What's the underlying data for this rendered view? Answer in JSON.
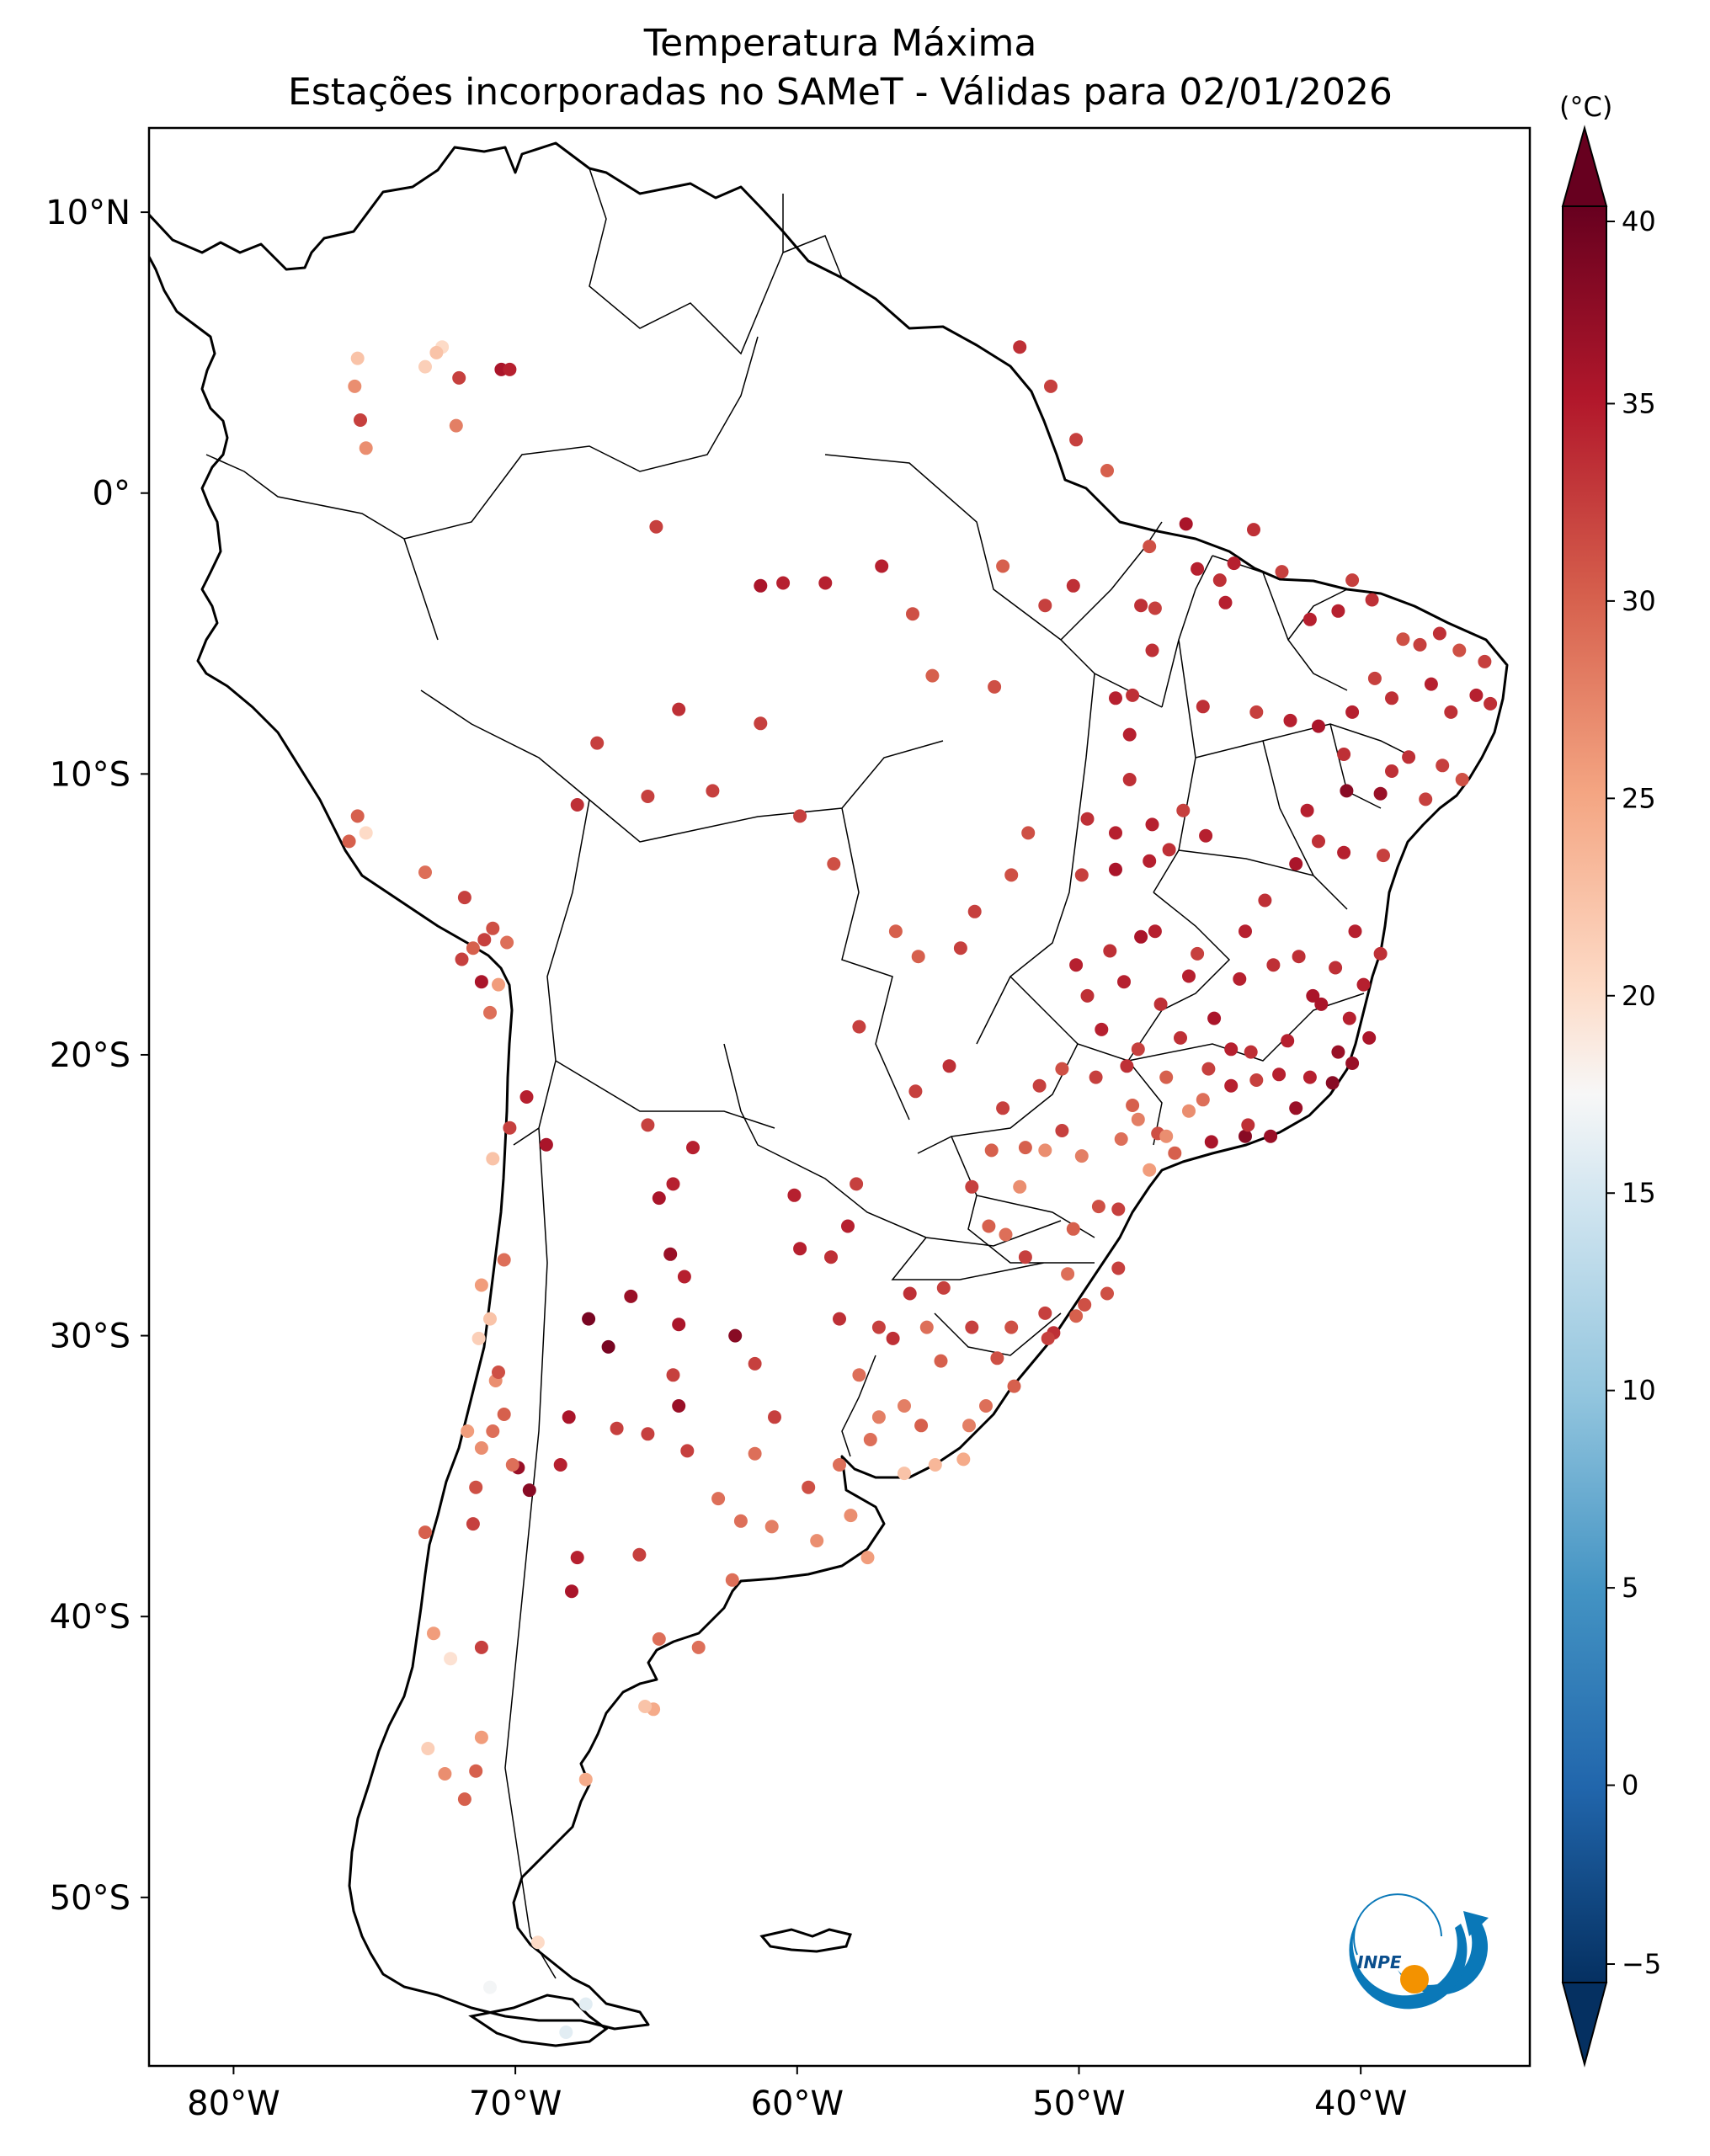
{
  "chart_data": {
    "type": "scatter",
    "title": "Temperatura Máxima",
    "subtitle": "Estações incorporadas no SAMeT - Válidas para 02/01/2026",
    "projection": "PlateCarree",
    "extent": {
      "lon": [
        -83,
        -34
      ],
      "lat": [
        -56,
        13
      ]
    },
    "x_ticks": [
      {
        "lon": -80,
        "label": "80°W"
      },
      {
        "lon": -70,
        "label": "70°W"
      },
      {
        "lon": -60,
        "label": "60°W"
      },
      {
        "lon": -50,
        "label": "50°W"
      },
      {
        "lon": -40,
        "label": "40°W"
      }
    ],
    "y_ticks": [
      {
        "lat": 10,
        "label": "10°N"
      },
      {
        "lat": 0,
        "label": "0°"
      },
      {
        "lat": -10,
        "label": "10°S"
      },
      {
        "lat": -20,
        "label": "20°S"
      },
      {
        "lat": -30,
        "label": "30°S"
      },
      {
        "lat": -40,
        "label": "40°S"
      },
      {
        "lat": -50,
        "label": "50°S"
      }
    ],
    "colorbar": {
      "label": "(°C)",
      "min": -5,
      "max": 40,
      "ticks": [
        -5,
        0,
        5,
        10,
        15,
        20,
        25,
        30,
        35,
        40
      ],
      "extend": "both",
      "colormap": "RdBu_r",
      "colors": [
        "#053061",
        "#2166ac",
        "#4393c3",
        "#92c5de",
        "#d1e5f0",
        "#f7f7f7",
        "#fddbc7",
        "#f4a582",
        "#d6604d",
        "#b2182b",
        "#67001f"
      ]
    },
    "stations": [
      [
        -75.6,
        4.8,
        24
      ],
      [
        -75.7,
        3.8,
        28
      ],
      [
        -75.5,
        2.6,
        33
      ],
      [
        -75.3,
        1.6,
        28
      ],
      [
        -72.6,
        5.2,
        22
      ],
      [
        -72.8,
        5,
        24
      ],
      [
        -73.2,
        4.5,
        23
      ],
      [
        -72,
        4.1,
        33
      ],
      [
        -70.5,
        4.4,
        36
      ],
      [
        -70.2,
        4.4,
        35
      ],
      [
        -72.1,
        2.4,
        29
      ],
      [
        -65,
        -1.2,
        33
      ],
      [
        -61.3,
        -3.3,
        36
      ],
      [
        -60.5,
        -3.2,
        35
      ],
      [
        -59,
        -3.2,
        35
      ],
      [
        -57,
        -2.6,
        35
      ],
      [
        -52.7,
        -2.6,
        31
      ],
      [
        -50.2,
        -3.3,
        34
      ],
      [
        -51.2,
        -4,
        33
      ],
      [
        -55.9,
        -4.3,
        32
      ],
      [
        -55.2,
        -6.5,
        31
      ],
      [
        -47.8,
        -4,
        34
      ],
      [
        -47.3,
        -4.1,
        33
      ],
      [
        -44.8,
        -3.9,
        35
      ],
      [
        -47.5,
        -1.9,
        32
      ],
      [
        -46.2,
        -1.1,
        36
      ],
      [
        -45.8,
        -2.7,
        35
      ],
      [
        -45,
        -3.1,
        34
      ],
      [
        -44.5,
        -2.5,
        35
      ],
      [
        -43.8,
        -1.3,
        34
      ],
      [
        -42.8,
        -2.8,
        33
      ],
      [
        -41.8,
        -4.5,
        35
      ],
      [
        -40.8,
        -4.2,
        35
      ],
      [
        -40.3,
        -3.1,
        33
      ],
      [
        -39.6,
        -3.8,
        34
      ],
      [
        -49,
        0.8,
        31
      ],
      [
        -50.1,
        1.9,
        33
      ],
      [
        -51,
        3.8,
        33
      ],
      [
        -52.1,
        5.2,
        34
      ],
      [
        -53,
        -6.9,
        32
      ],
      [
        -48.7,
        -7.3,
        35
      ],
      [
        -48.1,
        -7.2,
        34
      ],
      [
        -48.2,
        -8.6,
        35
      ],
      [
        -47.4,
        -5.6,
        34
      ],
      [
        -45.6,
        -7.6,
        34
      ],
      [
        -43.7,
        -7.8,
        33
      ],
      [
        -42.5,
        -8.1,
        35
      ],
      [
        -41.5,
        -8.3,
        36
      ],
      [
        -40.6,
        -9.3,
        34
      ],
      [
        -39.5,
        -6.6,
        33
      ],
      [
        -38.5,
        -5.2,
        32
      ],
      [
        -37.9,
        -5.4,
        33
      ],
      [
        -37.2,
        -5,
        34
      ],
      [
        -36.5,
        -5.6,
        32
      ],
      [
        -35.6,
        -6,
        33
      ],
      [
        -35.4,
        -7.5,
        34
      ],
      [
        -35.9,
        -7.2,
        35
      ],
      [
        -36.8,
        -7.8,
        34
      ],
      [
        -37.5,
        -6.8,
        35
      ],
      [
        -38.9,
        -7.3,
        34
      ],
      [
        -40.3,
        -7.8,
        35
      ],
      [
        -38.3,
        -9.4,
        34
      ],
      [
        -37.1,
        -9.7,
        33
      ],
      [
        -36.4,
        -10.2,
        32
      ],
      [
        -37.7,
        -10.9,
        33
      ],
      [
        -38.9,
        -9.9,
        34
      ],
      [
        -40.5,
        -10.6,
        38
      ],
      [
        -39.3,
        -10.7,
        37
      ],
      [
        -41.9,
        -11.3,
        35
      ],
      [
        -41.5,
        -12.4,
        34
      ],
      [
        -42.3,
        -13.2,
        36
      ],
      [
        -40.6,
        -12.8,
        35
      ],
      [
        -39.2,
        -12.9,
        33
      ],
      [
        -43.4,
        -14.5,
        34
      ],
      [
        -44.1,
        -15.6,
        35
      ],
      [
        -48.2,
        -10.2,
        34
      ],
      [
        -47.4,
        -11.8,
        35
      ],
      [
        -48.7,
        -12.1,
        35
      ],
      [
        -49.7,
        -11.6,
        34
      ],
      [
        -48.7,
        -13.4,
        36
      ],
      [
        -47.5,
        -13.1,
        35
      ],
      [
        -46.8,
        -12.7,
        34
      ],
      [
        -46.3,
        -11.3,
        33
      ],
      [
        -45.5,
        -12.2,
        35
      ],
      [
        -47.8,
        -15.8,
        36
      ],
      [
        -47.3,
        -15.6,
        35
      ],
      [
        -48.9,
        -16.3,
        34
      ],
      [
        -50.1,
        -16.8,
        35
      ],
      [
        -49.7,
        -17.9,
        34
      ],
      [
        -48.4,
        -17.4,
        35
      ],
      [
        -47.1,
        -18.2,
        34
      ],
      [
        -46.1,
        -17.2,
        35
      ],
      [
        -45.2,
        -18.7,
        36
      ],
      [
        -44.6,
        -19.8,
        35
      ],
      [
        -43.9,
        -19.9,
        34
      ],
      [
        -42.6,
        -19.5,
        35
      ],
      [
        -41.4,
        -18.2,
        36
      ],
      [
        -40.4,
        -18.7,
        35
      ],
      [
        -40.3,
        -20.3,
        37
      ],
      [
        -41,
        -21,
        38
      ],
      [
        -42.3,
        -21.9,
        37
      ],
      [
        -43.2,
        -22.9,
        37
      ],
      [
        -44.1,
        -22.9,
        38
      ],
      [
        -45.3,
        -23.1,
        36
      ],
      [
        -46.6,
        -23.5,
        31
      ],
      [
        -47.2,
        -22.8,
        32
      ],
      [
        -48.1,
        -21.8,
        31
      ],
      [
        -49.4,
        -20.8,
        33
      ],
      [
        -50.6,
        -20.5,
        32
      ],
      [
        -51.4,
        -21.1,
        33
      ],
      [
        -52.7,
        -21.9,
        33
      ],
      [
        -54.6,
        -20.4,
        34
      ],
      [
        -55.8,
        -21.3,
        33
      ],
      [
        -57.8,
        -19,
        33
      ],
      [
        -56.5,
        -15.6,
        31
      ],
      [
        -55.7,
        -16.5,
        31
      ],
      [
        -54.2,
        -16.2,
        33
      ],
      [
        -53.7,
        -14.9,
        33
      ],
      [
        -52.4,
        -13.6,
        32
      ],
      [
        -51.8,
        -12.1,
        32
      ],
      [
        -49.9,
        -13.6,
        33
      ],
      [
        -58.7,
        -13.2,
        32
      ],
      [
        -59.9,
        -11.5,
        33
      ],
      [
        -63,
        -10.6,
        33
      ],
      [
        -65.3,
        -10.8,
        33
      ],
      [
        -67.8,
        -11.1,
        34
      ],
      [
        -67.1,
        -8.9,
        33
      ],
      [
        -64.2,
        -7.7,
        34
      ],
      [
        -61.3,
        -8.2,
        33
      ],
      [
        -75.6,
        -11.5,
        31
      ],
      [
        -75.9,
        -12.4,
        31
      ],
      [
        -75.3,
        -12.1,
        22
      ],
      [
        -73.2,
        -13.5,
        30
      ],
      [
        -71.8,
        -14.4,
        33
      ],
      [
        -71.5,
        -16.2,
        31
      ],
      [
        -71.1,
        -15.9,
        33
      ],
      [
        -70.8,
        -15.5,
        32
      ],
      [
        -70.3,
        -16,
        30
      ],
      [
        -71.9,
        -16.6,
        33
      ],
      [
        -71.2,
        -17.4,
        36
      ],
      [
        -70.6,
        -17.5,
        27
      ],
      [
        -70.9,
        -18.5,
        30
      ],
      [
        -69.6,
        -21.5,
        35
      ],
      [
        -70.2,
        -22.6,
        33
      ],
      [
        -68.9,
        -23.2,
        36
      ],
      [
        -65.3,
        -22.5,
        33
      ],
      [
        -63.7,
        -23.3,
        35
      ],
      [
        -64.4,
        -24.6,
        35
      ],
      [
        -64.9,
        -25.1,
        36
      ],
      [
        -64.5,
        -27.1,
        37
      ],
      [
        -64,
        -27.9,
        35
      ],
      [
        -65.9,
        -28.6,
        37
      ],
      [
        -67.4,
        -29.4,
        39
      ],
      [
        -66.7,
        -30.4,
        39
      ],
      [
        -64.2,
        -29.6,
        36
      ],
      [
        -62.2,
        -30,
        38
      ],
      [
        -61.5,
        -31,
        33
      ],
      [
        -60.1,
        -25,
        35
      ],
      [
        -59.9,
        -26.9,
        35
      ],
      [
        -58.2,
        -26.1,
        35
      ],
      [
        -58.8,
        -27.2,
        34
      ],
      [
        -57.9,
        -24.6,
        33
      ],
      [
        -58.5,
        -29.4,
        34
      ],
      [
        -57.1,
        -29.7,
        33
      ],
      [
        -56,
        -28.5,
        34
      ],
      [
        -56.6,
        -30.1,
        34
      ],
      [
        -57.8,
        -31.4,
        30
      ],
      [
        -57.1,
        -32.9,
        29
      ],
      [
        -55.6,
        -33.2,
        31
      ],
      [
        -55.1,
        -34.6,
        25
      ],
      [
        -56.2,
        -34.9,
        24
      ],
      [
        -54.1,
        -34.4,
        26
      ],
      [
        -53.9,
        -33.2,
        29
      ],
      [
        -56.2,
        -32.5,
        29
      ],
      [
        -57.4,
        -33.7,
        30
      ],
      [
        -53.2,
        -26.1,
        31
      ],
      [
        -52.6,
        -26.4,
        30
      ],
      [
        -51.9,
        -27.2,
        33
      ],
      [
        -50.4,
        -27.8,
        30
      ],
      [
        -48.6,
        -27.6,
        33
      ],
      [
        -49,
        -28.5,
        32
      ],
      [
        -51.2,
        -29.2,
        33
      ],
      [
        -50.9,
        -29.9,
        34
      ],
      [
        -51.1,
        -30.1,
        33
      ],
      [
        -52.4,
        -29.7,
        32
      ],
      [
        -53.8,
        -29.7,
        33
      ],
      [
        -54.8,
        -28.3,
        33
      ],
      [
        -55.4,
        -29.7,
        30
      ],
      [
        -54.9,
        -30.9,
        31
      ],
      [
        -52.3,
        -31.8,
        31
      ],
      [
        -53.3,
        -32.5,
        30
      ],
      [
        -52.9,
        -30.8,
        32
      ],
      [
        -50.1,
        -29.3,
        31
      ],
      [
        -49.8,
        -28.9,
        32
      ],
      [
        -53.1,
        -23.4,
        31
      ],
      [
        -53.8,
        -24.7,
        33
      ],
      [
        -51.9,
        -23.3,
        31
      ],
      [
        -50.6,
        -22.7,
        33
      ],
      [
        -49.3,
        -25.4,
        32
      ],
      [
        -48.6,
        -25.5,
        33
      ],
      [
        -50.2,
        -26.2,
        31
      ],
      [
        -52.1,
        -24.7,
        28
      ],
      [
        -51.2,
        -23.4,
        28
      ],
      [
        -49.9,
        -23.6,
        29
      ],
      [
        -48.5,
        -23,
        30
      ],
      [
        -47.9,
        -22.3,
        29
      ],
      [
        -46.9,
        -22.9,
        28
      ],
      [
        -47.5,
        -24.1,
        27
      ],
      [
        -46.1,
        -22,
        28
      ],
      [
        -45.6,
        -21.6,
        30
      ],
      [
        -44,
        -22.5,
        34
      ],
      [
        -43.7,
        -20.9,
        33
      ],
      [
        -42.9,
        -20.7,
        35
      ],
      [
        -41.8,
        -20.8,
        35
      ],
      [
        -40.8,
        -19.9,
        37
      ],
      [
        -39.7,
        -19.4,
        36
      ],
      [
        -39.9,
        -17.5,
        35
      ],
      [
        -39.3,
        -16.4,
        34
      ],
      [
        -40.2,
        -15.6,
        35
      ],
      [
        -40.9,
        -16.9,
        34
      ],
      [
        -41.7,
        -17.9,
        36
      ],
      [
        -42.2,
        -16.5,
        34
      ],
      [
        -43.1,
        -16.8,
        34
      ],
      [
        -44.3,
        -17.3,
        35
      ],
      [
        -45.8,
        -16.4,
        33
      ],
      [
        -46.4,
        -19.4,
        34
      ],
      [
        -47.9,
        -19.8,
        33
      ],
      [
        -49.2,
        -19.1,
        35
      ],
      [
        -48.3,
        -20.4,
        34
      ],
      [
        -46.9,
        -20.8,
        31
      ],
      [
        -45.4,
        -20.5,
        33
      ],
      [
        -44.6,
        -21.1,
        35
      ],
      [
        -58.5,
        -34.6,
        30
      ],
      [
        -58.1,
        -36.4,
        28
      ],
      [
        -59.3,
        -37.3,
        28
      ],
      [
        -57.5,
        -37.9,
        27
      ],
      [
        -60.9,
        -36.8,
        29
      ],
      [
        -62.3,
        -38.7,
        30
      ],
      [
        -62,
        -36.6,
        30
      ],
      [
        -61.5,
        -34.2,
        30
      ],
      [
        -60.8,
        -32.9,
        33
      ],
      [
        -59.6,
        -35.4,
        32
      ],
      [
        -62.8,
        -35.8,
        30
      ],
      [
        -63.9,
        -34.1,
        33
      ],
      [
        -65.3,
        -33.5,
        33
      ],
      [
        -64.4,
        -31.4,
        33
      ],
      [
        -64.2,
        -32.5,
        37
      ],
      [
        -66.4,
        -33.3,
        33
      ],
      [
        -68.1,
        -32.9,
        36
      ],
      [
        -68.4,
        -34.6,
        35
      ],
      [
        -69.5,
        -35.5,
        38
      ],
      [
        -67.8,
        -37.9,
        35
      ],
      [
        -68,
        -39.1,
        36
      ],
      [
        -65.6,
        -37.8,
        33
      ],
      [
        -64.9,
        -40.8,
        30
      ],
      [
        -63.5,
        -41.1,
        30
      ],
      [
        -65.1,
        -43.3,
        26
      ],
      [
        -65.4,
        -43.2,
        24
      ],
      [
        -67.5,
        -45.8,
        26
      ],
      [
        -69.2,
        -51.6,
        22
      ],
      [
        -70.9,
        -53.2,
        17
      ],
      [
        -68.2,
        -54.8,
        15
      ],
      [
        -67.5,
        -53.8,
        15
      ],
      [
        -71.2,
        -41.1,
        33
      ],
      [
        -71.4,
        -45.5,
        31
      ],
      [
        -71.8,
        -46.5,
        31
      ],
      [
        -71.2,
        -44.3,
        27
      ],
      [
        -72.3,
        -41.5,
        21
      ],
      [
        -72.9,
        -40.6,
        27
      ],
      [
        -73.2,
        -37,
        31
      ],
      [
        -71.5,
        -36.7,
        33
      ],
      [
        -71.4,
        -35.4,
        32
      ],
      [
        -71.2,
        -34,
        28
      ],
      [
        -71.7,
        -33.4,
        27
      ],
      [
        -70.7,
        -31.6,
        28
      ],
      [
        -71.3,
        -30.1,
        23
      ],
      [
        -70.9,
        -29.4,
        24
      ],
      [
        -71.2,
        -28.2,
        27
      ],
      [
        -70.4,
        -27.3,
        30
      ],
      [
        -70.8,
        -23.7,
        24
      ],
      [
        -72.5,
        -45.6,
        28
      ],
      [
        -73.1,
        -44.7,
        23
      ],
      [
        -70.6,
        -31.3,
        32
      ],
      [
        -70.4,
        -32.8,
        31
      ],
      [
        -70.8,
        -33.4,
        30
      ],
      [
        -69.9,
        -34.7,
        37
      ],
      [
        -70.1,
        -34.6,
        30
      ]
    ],
    "logo_text": "INPE"
  }
}
